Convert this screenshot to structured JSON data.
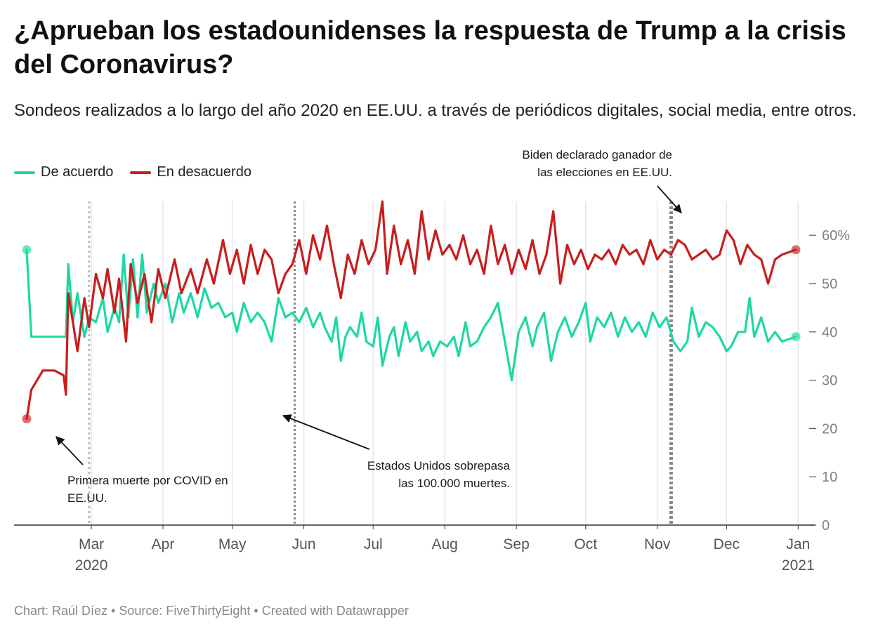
{
  "title": "¿Aprueban los estadounidenses la respuesta de Trump a la crisis del Coronavirus?",
  "subtitle": "Sondeos realizados a lo largo del año 2020 en EE.UU. a través de periódicos digitales, social media, entre otros.",
  "footer": "Chart: Raúl Díez • Source: FiveThirtyEight • Created with Datawrapper",
  "colors": {
    "agree": "#1ed8a4",
    "disagree": "#c71e1d",
    "grid": "#e6e6e6",
    "axis": "#333333"
  },
  "chart_data": {
    "type": "line",
    "title": "¿Aprueban los estadounidenses la respuesta de Trump a la crisis del Coronavirus?",
    "subtitle": "Sondeos realizados a lo largo del año 2020 en EE.UU. a través de periódicos digitales, social media, entre otros.",
    "xlabel": "",
    "ylabel": "",
    "xlim": [
      "2020-02-02",
      "2020-12-31"
    ],
    "ylim": [
      0,
      67
    ],
    "y_ticks": [
      0,
      10,
      20,
      30,
      40,
      50,
      60
    ],
    "y_tick_labels": [
      "0",
      "10",
      "20",
      "30",
      "40",
      "50",
      "60%"
    ],
    "x_ticks": [
      {
        "date": "2020-03-01",
        "label": "Mar",
        "year": "2020"
      },
      {
        "date": "2020-04-01",
        "label": "Apr",
        "year": ""
      },
      {
        "date": "2020-05-01",
        "label": "May",
        "year": ""
      },
      {
        "date": "2020-06-01",
        "label": "Jun",
        "year": ""
      },
      {
        "date": "2020-07-01",
        "label": "Jul",
        "year": ""
      },
      {
        "date": "2020-08-01",
        "label": "Aug",
        "year": ""
      },
      {
        "date": "2020-09-01",
        "label": "Sep",
        "year": ""
      },
      {
        "date": "2020-10-01",
        "label": "Oct",
        "year": ""
      },
      {
        "date": "2020-11-01",
        "label": "Nov",
        "year": ""
      },
      {
        "date": "2020-12-01",
        "label": "Dec",
        "year": ""
      },
      {
        "date": "2021-01-01",
        "label": "Jan",
        "year": "2021"
      }
    ],
    "grid": true,
    "legend_position": "top-left",
    "series": [
      {
        "name": "De acuerdo",
        "color": "#1ed8a4",
        "points": [
          [
            "2020-02-02",
            57
          ],
          [
            "2020-02-04",
            39
          ],
          [
            "2020-02-18",
            39
          ],
          [
            "2020-02-19",
            39
          ],
          [
            "2020-02-20",
            54
          ],
          [
            "2020-02-22",
            42
          ],
          [
            "2020-02-24",
            48
          ],
          [
            "2020-02-27",
            39
          ],
          [
            "2020-02-29",
            43
          ],
          [
            "2020-03-03",
            42
          ],
          [
            "2020-03-06",
            47
          ],
          [
            "2020-03-08",
            40
          ],
          [
            "2020-03-11",
            45
          ],
          [
            "2020-03-13",
            42
          ],
          [
            "2020-03-15",
            56
          ],
          [
            "2020-03-17",
            43
          ],
          [
            "2020-03-19",
            55
          ],
          [
            "2020-03-21",
            43
          ],
          [
            "2020-03-23",
            56
          ],
          [
            "2020-03-25",
            44
          ],
          [
            "2020-03-28",
            50
          ],
          [
            "2020-03-30",
            46
          ],
          [
            "2020-04-02",
            50
          ],
          [
            "2020-04-05",
            42
          ],
          [
            "2020-04-08",
            48
          ],
          [
            "2020-04-10",
            44
          ],
          [
            "2020-04-13",
            48
          ],
          [
            "2020-04-16",
            43
          ],
          [
            "2020-04-19",
            49
          ],
          [
            "2020-04-22",
            45
          ],
          [
            "2020-04-25",
            46
          ],
          [
            "2020-04-28",
            43
          ],
          [
            "2020-05-01",
            44
          ],
          [
            "2020-05-03",
            40
          ],
          [
            "2020-05-06",
            46
          ],
          [
            "2020-05-09",
            42
          ],
          [
            "2020-05-12",
            44
          ],
          [
            "2020-05-15",
            42
          ],
          [
            "2020-05-18",
            38
          ],
          [
            "2020-05-21",
            47
          ],
          [
            "2020-05-24",
            43
          ],
          [
            "2020-05-27",
            44
          ],
          [
            "2020-05-30",
            42
          ],
          [
            "2020-06-02",
            45
          ],
          [
            "2020-06-05",
            41
          ],
          [
            "2020-06-08",
            44
          ],
          [
            "2020-06-10",
            41
          ],
          [
            "2020-06-13",
            38
          ],
          [
            "2020-06-15",
            43
          ],
          [
            "2020-06-17",
            34
          ],
          [
            "2020-06-19",
            39
          ],
          [
            "2020-06-21",
            41
          ],
          [
            "2020-06-24",
            39
          ],
          [
            "2020-06-26",
            44
          ],
          [
            "2020-06-28",
            38
          ],
          [
            "2020-07-01",
            37
          ],
          [
            "2020-07-03",
            43
          ],
          [
            "2020-07-05",
            33
          ],
          [
            "2020-07-08",
            39
          ],
          [
            "2020-07-10",
            41
          ],
          [
            "2020-07-12",
            35
          ],
          [
            "2020-07-15",
            42
          ],
          [
            "2020-07-17",
            38
          ],
          [
            "2020-07-20",
            40
          ],
          [
            "2020-07-22",
            36
          ],
          [
            "2020-07-25",
            38
          ],
          [
            "2020-07-27",
            35
          ],
          [
            "2020-07-30",
            38
          ],
          [
            "2020-08-02",
            37
          ],
          [
            "2020-08-05",
            39
          ],
          [
            "2020-08-07",
            35
          ],
          [
            "2020-08-10",
            42
          ],
          [
            "2020-08-12",
            37
          ],
          [
            "2020-08-15",
            38
          ],
          [
            "2020-08-18",
            41
          ],
          [
            "2020-08-21",
            43
          ],
          [
            "2020-08-24",
            46
          ],
          [
            "2020-08-27",
            38
          ],
          [
            "2020-08-30",
            30
          ],
          [
            "2020-09-02",
            40
          ],
          [
            "2020-09-05",
            43
          ],
          [
            "2020-09-08",
            37
          ],
          [
            "2020-09-10",
            41
          ],
          [
            "2020-09-13",
            44
          ],
          [
            "2020-09-16",
            34
          ],
          [
            "2020-09-19",
            40
          ],
          [
            "2020-09-22",
            43
          ],
          [
            "2020-09-25",
            39
          ],
          [
            "2020-09-28",
            42
          ],
          [
            "2020-10-01",
            46
          ],
          [
            "2020-10-03",
            38
          ],
          [
            "2020-10-06",
            43
          ],
          [
            "2020-10-09",
            41
          ],
          [
            "2020-10-12",
            44
          ],
          [
            "2020-10-15",
            39
          ],
          [
            "2020-10-18",
            43
          ],
          [
            "2020-10-21",
            40
          ],
          [
            "2020-10-24",
            42
          ],
          [
            "2020-10-27",
            39
          ],
          [
            "2020-10-30",
            44
          ],
          [
            "2020-11-02",
            41
          ],
          [
            "2020-11-05",
            43
          ],
          [
            "2020-11-08",
            38
          ],
          [
            "2020-11-11",
            36
          ],
          [
            "2020-11-14",
            38
          ],
          [
            "2020-11-16",
            45
          ],
          [
            "2020-11-19",
            39
          ],
          [
            "2020-11-22",
            42
          ],
          [
            "2020-11-25",
            41
          ],
          [
            "2020-11-28",
            39
          ],
          [
            "2020-12-01",
            36
          ],
          [
            "2020-12-03",
            37
          ],
          [
            "2020-12-06",
            40
          ],
          [
            "2020-12-09",
            40
          ],
          [
            "2020-12-11",
            47
          ],
          [
            "2020-12-13",
            39
          ],
          [
            "2020-12-16",
            43
          ],
          [
            "2020-12-19",
            38
          ],
          [
            "2020-12-22",
            40
          ],
          [
            "2020-12-25",
            38
          ],
          [
            "2020-12-31",
            39
          ]
        ]
      },
      {
        "name": "En desacuerdo",
        "color": "#c71e1d",
        "points": [
          [
            "2020-02-02",
            22
          ],
          [
            "2020-02-04",
            28
          ],
          [
            "2020-02-09",
            32
          ],
          [
            "2020-02-14",
            32
          ],
          [
            "2020-02-18",
            31
          ],
          [
            "2020-02-19",
            27
          ],
          [
            "2020-02-20",
            48
          ],
          [
            "2020-02-24",
            36
          ],
          [
            "2020-02-27",
            47
          ],
          [
            "2020-02-29",
            41
          ],
          [
            "2020-03-03",
            52
          ],
          [
            "2020-03-06",
            47
          ],
          [
            "2020-03-08",
            53
          ],
          [
            "2020-03-11",
            44
          ],
          [
            "2020-03-13",
            51
          ],
          [
            "2020-03-16",
            38
          ],
          [
            "2020-03-18",
            54
          ],
          [
            "2020-03-21",
            46
          ],
          [
            "2020-03-24",
            52
          ],
          [
            "2020-03-27",
            42
          ],
          [
            "2020-03-30",
            53
          ],
          [
            "2020-04-02",
            47
          ],
          [
            "2020-04-06",
            55
          ],
          [
            "2020-04-09",
            48
          ],
          [
            "2020-04-13",
            53
          ],
          [
            "2020-04-16",
            48
          ],
          [
            "2020-04-20",
            55
          ],
          [
            "2020-04-23",
            50
          ],
          [
            "2020-04-27",
            59
          ],
          [
            "2020-04-30",
            52
          ],
          [
            "2020-05-03",
            57
          ],
          [
            "2020-05-06",
            50
          ],
          [
            "2020-05-09",
            58
          ],
          [
            "2020-05-12",
            52
          ],
          [
            "2020-05-15",
            57
          ],
          [
            "2020-05-18",
            55
          ],
          [
            "2020-05-21",
            48
          ],
          [
            "2020-05-24",
            52
          ],
          [
            "2020-05-27",
            54
          ],
          [
            "2020-05-30",
            59
          ],
          [
            "2020-06-02",
            52
          ],
          [
            "2020-06-05",
            60
          ],
          [
            "2020-06-08",
            55
          ],
          [
            "2020-06-11",
            62
          ],
          [
            "2020-06-14",
            54
          ],
          [
            "2020-06-17",
            47
          ],
          [
            "2020-06-20",
            56
          ],
          [
            "2020-06-23",
            52
          ],
          [
            "2020-06-26",
            59
          ],
          [
            "2020-06-29",
            54
          ],
          [
            "2020-07-02",
            57
          ],
          [
            "2020-07-05",
            67
          ],
          [
            "2020-07-07",
            52
          ],
          [
            "2020-07-10",
            62
          ],
          [
            "2020-07-13",
            54
          ],
          [
            "2020-07-16",
            59
          ],
          [
            "2020-07-19",
            52
          ],
          [
            "2020-07-22",
            65
          ],
          [
            "2020-07-25",
            55
          ],
          [
            "2020-07-28",
            61
          ],
          [
            "2020-07-31",
            56
          ],
          [
            "2020-08-03",
            58
          ],
          [
            "2020-08-06",
            55
          ],
          [
            "2020-08-09",
            60
          ],
          [
            "2020-08-12",
            54
          ],
          [
            "2020-08-15",
            57
          ],
          [
            "2020-08-18",
            52
          ],
          [
            "2020-08-21",
            62
          ],
          [
            "2020-08-24",
            54
          ],
          [
            "2020-08-27",
            58
          ],
          [
            "2020-08-30",
            52
          ],
          [
            "2020-09-02",
            57
          ],
          [
            "2020-09-05",
            53
          ],
          [
            "2020-09-08",
            59
          ],
          [
            "2020-09-11",
            52
          ],
          [
            "2020-09-14",
            56
          ],
          [
            "2020-09-17",
            65
          ],
          [
            "2020-09-20",
            50
          ],
          [
            "2020-09-23",
            58
          ],
          [
            "2020-09-26",
            54
          ],
          [
            "2020-09-29",
            57
          ],
          [
            "2020-10-02",
            53
          ],
          [
            "2020-10-05",
            56
          ],
          [
            "2020-10-08",
            55
          ],
          [
            "2020-10-11",
            57
          ],
          [
            "2020-10-14",
            54
          ],
          [
            "2020-10-17",
            58
          ],
          [
            "2020-10-20",
            56
          ],
          [
            "2020-10-23",
            57
          ],
          [
            "2020-10-26",
            54
          ],
          [
            "2020-10-29",
            59
          ],
          [
            "2020-11-01",
            55
          ],
          [
            "2020-11-04",
            57
          ],
          [
            "2020-11-07",
            56
          ],
          [
            "2020-11-10",
            59
          ],
          [
            "2020-11-13",
            58
          ],
          [
            "2020-11-16",
            55
          ],
          [
            "2020-11-19",
            56
          ],
          [
            "2020-11-22",
            57
          ],
          [
            "2020-11-25",
            55
          ],
          [
            "2020-11-28",
            56
          ],
          [
            "2020-12-01",
            61
          ],
          [
            "2020-12-04",
            59
          ],
          [
            "2020-12-07",
            54
          ],
          [
            "2020-12-10",
            58
          ],
          [
            "2020-12-13",
            56
          ],
          [
            "2020-12-16",
            55
          ],
          [
            "2020-12-19",
            50
          ],
          [
            "2020-12-22",
            55
          ],
          [
            "2020-12-25",
            56
          ],
          [
            "2020-12-31",
            57
          ]
        ]
      }
    ],
    "annotations": [
      {
        "date": "2020-02-29",
        "lines": [
          "Primera muerte por COVID en",
          "EE.UU."
        ],
        "style": "dotted-light"
      },
      {
        "date": "2020-05-28",
        "lines": [
          "Estados Unidos sobrepasa",
          "las 100.000 muertes."
        ],
        "style": "dotted-dark"
      },
      {
        "date": "2020-11-07",
        "lines": [
          "Biden declarado ganador de",
          "las elecciones en EE.UU."
        ],
        "style": "dashed-dark"
      }
    ]
  }
}
